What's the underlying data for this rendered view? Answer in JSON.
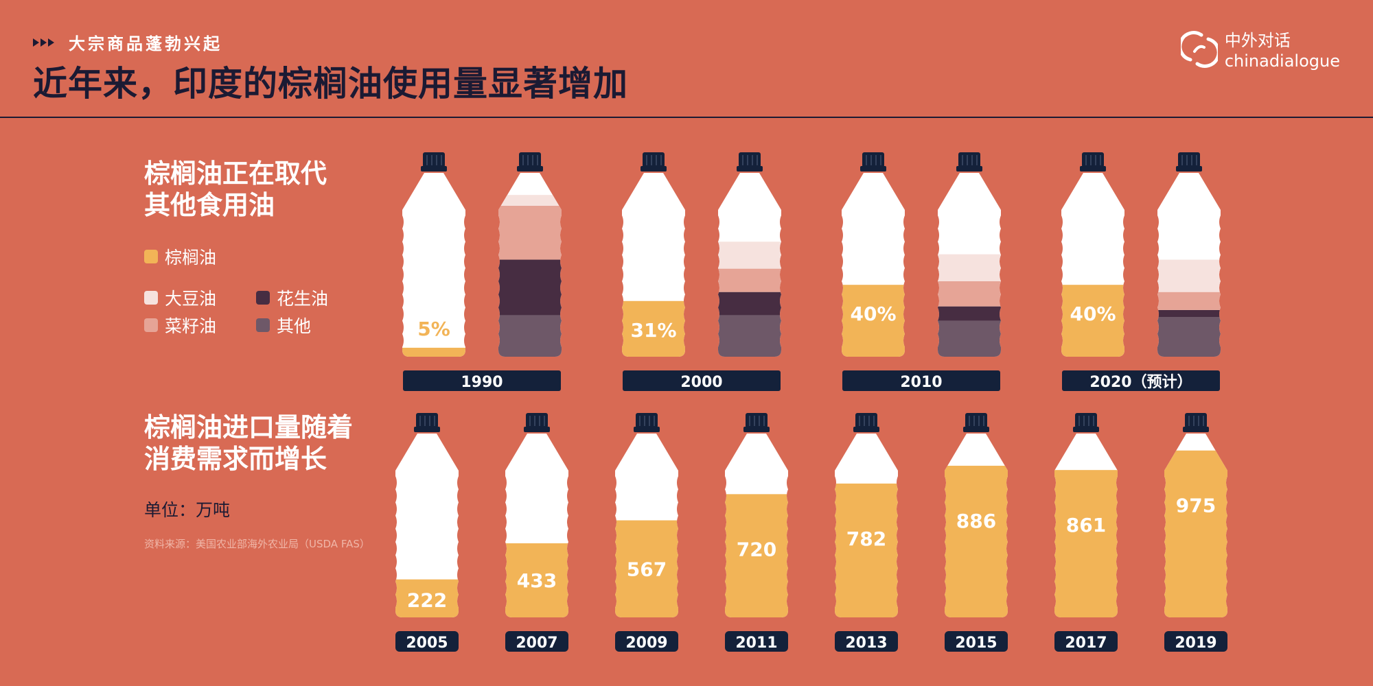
{
  "header": {
    "kicker": "大宗商品蓬勃兴起",
    "title": "近年来，印度的棕榈油使用量显著增加",
    "brand_cn": "中外对话",
    "brand_en": "chinadialogue"
  },
  "section1": {
    "title_line1": "棕榈油正在取代",
    "title_line2": "其他食用油"
  },
  "section2": {
    "title_line1": "棕榈油进口量随着",
    "title_line2": "消费需求而增长",
    "unit": "单位：万吨",
    "source": "资料来源：美国农业部海外农业局（USDA FAS）"
  },
  "legend": {
    "palm": "棕榈油",
    "soy": "大豆油",
    "peanut": "花生油",
    "rapeseed": "菜籽油",
    "other": "其他"
  },
  "colors": {
    "background": "#d86a54",
    "palm": "#f2b457",
    "soy": "#f6e2de",
    "rapeseed": "#e6a496",
    "peanut": "#472d42",
    "other": "#6e5868",
    "navy": "#14213a",
    "white": "#ffffff"
  },
  "chart_data": [
    {
      "type": "bar",
      "title": "棕榈油正在取代其他食用油",
      "categories": [
        "1990",
        "2000",
        "2010",
        "2020（预计）"
      ],
      "palm_share_labels": [
        "5%",
        "31%",
        "40%",
        "40%"
      ],
      "series": [
        {
          "name": "棕榈油",
          "values": [
            5,
            31,
            40,
            40
          ]
        },
        {
          "name": "大豆油",
          "values": [
            6,
            15,
            15,
            18
          ]
        },
        {
          "name": "菜籽油",
          "values": [
            30,
            13,
            14,
            10
          ]
        },
        {
          "name": "花生油",
          "values": [
            31,
            13,
            8,
            4
          ]
        },
        {
          "name": "其他",
          "values": [
            23,
            23,
            20,
            22
          ]
        }
      ],
      "ylim": [
        0,
        100
      ]
    },
    {
      "type": "bar",
      "title": "棕榈油进口量随着消费需求而增长",
      "unit": "单位：万吨",
      "categories": [
        "2005",
        "2007",
        "2009",
        "2011",
        "2013",
        "2015",
        "2017",
        "2019"
      ],
      "values": [
        222,
        433,
        567,
        720,
        782,
        886,
        861,
        975
      ],
      "ylim": [
        0,
        1050
      ]
    }
  ]
}
